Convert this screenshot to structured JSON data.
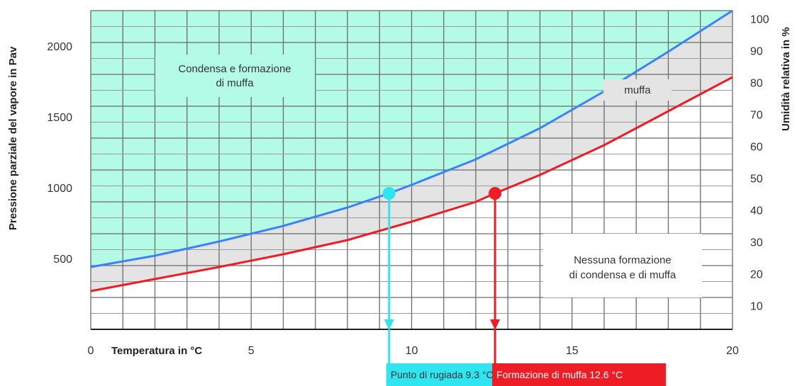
{
  "chart_data": {
    "type": "line",
    "xlabel": "Temperatura in °C",
    "ylabel_left": "Pressione parziale del vapore in Pav",
    "ylabel_right": "Umidità relativa in %",
    "xlim": [
      0,
      20
    ],
    "ylim_left": [
      0,
      2250
    ],
    "ylim_right": [
      2.5,
      102.5
    ],
    "x_ticks": [
      0,
      5,
      10,
      15,
      20
    ],
    "y_left_ticks": [
      500,
      1000,
      1500,
      2000
    ],
    "y_right_ticks": [
      10,
      20,
      30,
      40,
      50,
      60,
      70,
      80,
      90,
      100
    ],
    "grid": true,
    "series": [
      {
        "color": "#3b82f6",
        "x": [
          0,
          2,
          4,
          6,
          8,
          9.3,
          10,
          12,
          14,
          16,
          18,
          20
        ],
        "y": [
          440,
          520,
          620,
          730,
          860,
          960,
          1020,
          1200,
          1420,
          1680,
          1960,
          2250
        ]
      },
      {
        "color": "#ee1c25",
        "x": [
          0,
          2,
          4,
          6,
          8,
          10,
          12,
          12.6,
          14,
          16,
          18,
          20
        ],
        "y": [
          270,
          355,
          440,
          530,
          630,
          760,
          900,
          960,
          1090,
          1300,
          1540,
          1780
        ]
      }
    ],
    "points": [
      {
        "x": 9.3,
        "y": 960,
        "color": "#2ee6f0"
      },
      {
        "x": 12.6,
        "y": 960,
        "color": "#ee1c25"
      }
    ],
    "regions": {
      "condensation_fill": "#b3fbe4",
      "mold_fill": "#e4e4e4"
    },
    "annotations": {
      "condensation": [
        "Condensa e formazione",
        "di muffa"
      ],
      "mold": "muffa",
      "none": [
        "Nessuna formazione",
        "di condensa e di muffa"
      ]
    },
    "callouts": [
      {
        "label": "Punto di rugiada 9.3 °C",
        "x": 9.3,
        "bg": "#2ee6f0",
        "fg": "#333333"
      },
      {
        "label": "Formazione di muffa 12.6 °C",
        "x": 12.6,
        "bg": "#ee1c25",
        "fg": "#ffffff"
      }
    ]
  }
}
